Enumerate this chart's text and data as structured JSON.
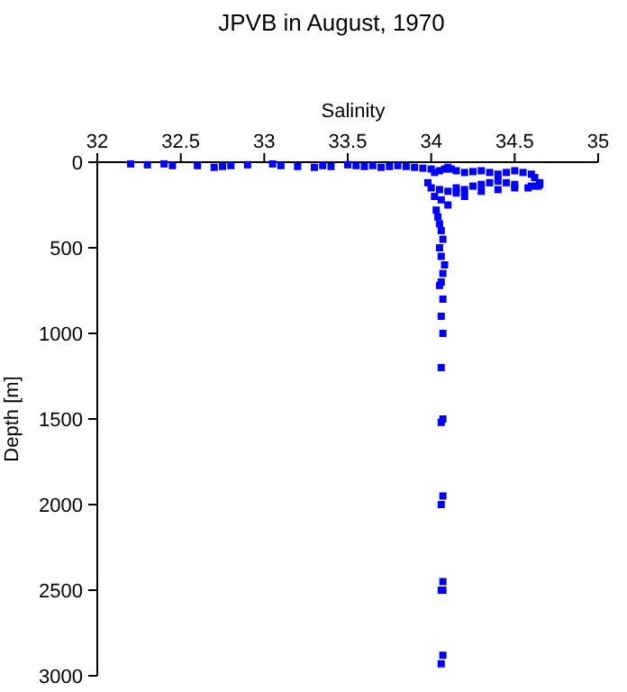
{
  "chart_data": {
    "type": "scatter",
    "title": "JPVB in August, 1970",
    "xlabel": "Salinity",
    "ylabel": "Depth [m]",
    "xlim": [
      32,
      35
    ],
    "xticks": [
      32,
      32.5,
      33,
      33.5,
      34,
      34.5,
      35
    ],
    "ylim": [
      3000,
      0
    ],
    "yticks": [
      0,
      500,
      1000,
      1500,
      2000,
      2500,
      3000
    ],
    "marker": "square",
    "grid": false,
    "series": [
      {
        "color": "#0000ff",
        "x": [
          32.2,
          32.3,
          32.4,
          32.45,
          32.6,
          32.7,
          32.75,
          32.8,
          32.9,
          33.05,
          33.1,
          33.2,
          33.3,
          33.35,
          33.4,
          33.5,
          33.55,
          33.6,
          33.65,
          33.7,
          33.75,
          33.8,
          33.85,
          33.9,
          33.95,
          34.0,
          34.02,
          34.05,
          34.08,
          34.1,
          34.12,
          34.15,
          34.2,
          34.25,
          34.3,
          34.35,
          34.4,
          34.45,
          34.5,
          34.55,
          34.6,
          34.62,
          34.65,
          34.64,
          34.58,
          34.5,
          34.45,
          34.4,
          34.35,
          34.3,
          34.25,
          34.2,
          34.15,
          34.1,
          34.05,
          34.0,
          33.98,
          34.02,
          34.06,
          34.1,
          34.15,
          34.2,
          34.3,
          34.4,
          34.5,
          34.6,
          34.65,
          34.03,
          34.04,
          34.05,
          34.06,
          34.07,
          34.05,
          34.06,
          34.08,
          34.07,
          34.06,
          34.05,
          34.07,
          34.06,
          34.07,
          34.06,
          34.07,
          34.06,
          34.07,
          34.06,
          34.07,
          34.06,
          34.07,
          34.06,
          34.07
        ],
        "values": [
          10,
          15,
          10,
          20,
          20,
          30,
          25,
          20,
          15,
          10,
          20,
          25,
          30,
          20,
          25,
          15,
          20,
          25,
          20,
          30,
          25,
          20,
          25,
          30,
          35,
          40,
          60,
          50,
          40,
          30,
          40,
          50,
          60,
          55,
          50,
          60,
          70,
          60,
          50,
          60,
          70,
          90,
          120,
          140,
          150,
          130,
          120,
          110,
          120,
          130,
          140,
          160,
          150,
          170,
          160,
          150,
          120,
          200,
          220,
          250,
          180,
          200,
          170,
          160,
          150,
          140,
          130,
          280,
          320,
          360,
          400,
          450,
          500,
          550,
          600,
          650,
          700,
          720,
          800,
          900,
          1000,
          1200,
          1500,
          1520,
          1950,
          2000,
          2450,
          2500,
          2880,
          2930,
          2500
        ]
      }
    ]
  }
}
